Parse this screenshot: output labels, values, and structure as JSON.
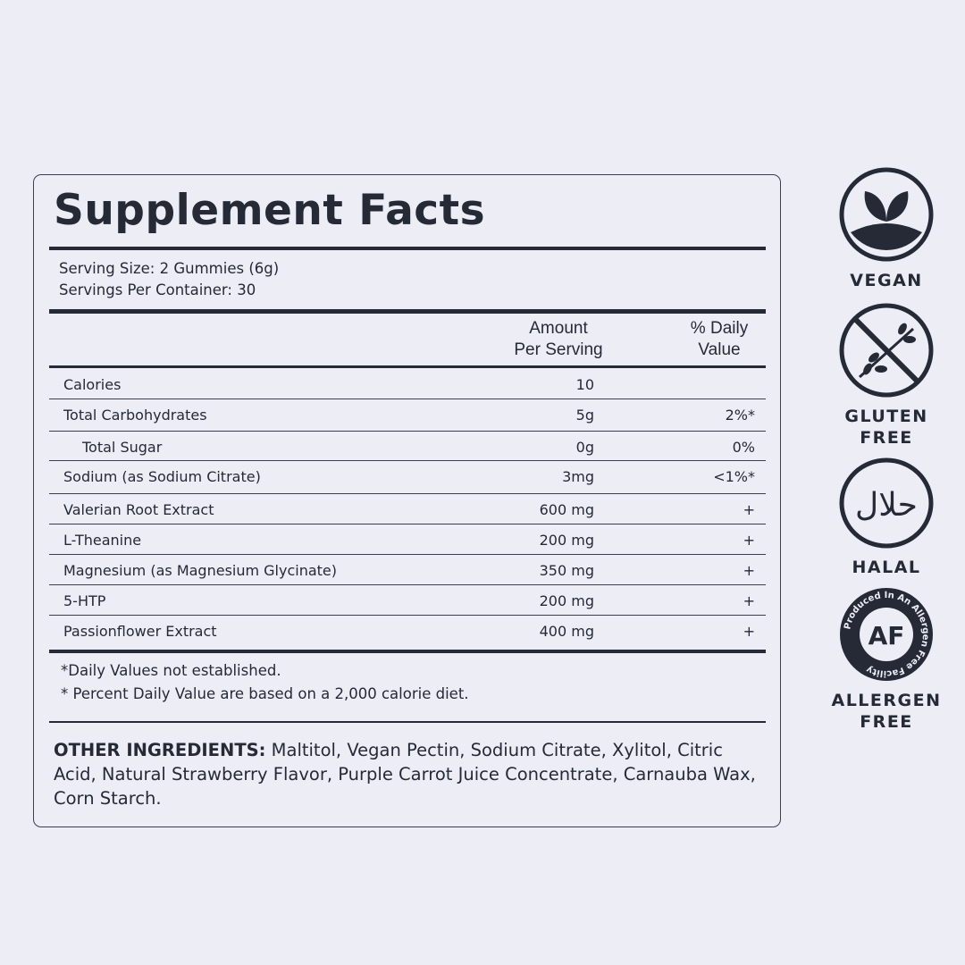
{
  "panel": {
    "title": "Supplement Facts",
    "serving_size": "Serving Size: 2 Gummies (6g)",
    "servings_per_container": "Servings Per Container: 30",
    "header": {
      "amount_line1": "Amount",
      "amount_line2": "Per Serving",
      "dv_line1": "% Daily",
      "dv_line2": "Value"
    },
    "rows": [
      {
        "name": "Calories",
        "amount": "10",
        "dv": ""
      },
      {
        "name": "Total Carbohydrates",
        "amount": "5g",
        "dv": "2%*"
      },
      {
        "name": "Total Sugar",
        "amount": "0g",
        "dv": "0%",
        "indent": true
      },
      {
        "name": "Sodium (as Sodium Citrate)",
        "amount": "3mg",
        "dv": "<1%*"
      },
      {
        "name": "Valerian Root Extract",
        "amount": "600 mg",
        "dv": "+"
      },
      {
        "name": "L-Theanine",
        "amount": "200 mg",
        "dv": "+"
      },
      {
        "name": "Magnesium (as Magnesium Glycinate)",
        "amount": "350 mg",
        "dv": "+"
      },
      {
        "name": "5-HTP",
        "amount": "200 mg",
        "dv": "+"
      },
      {
        "name": "Passionflower Extract",
        "amount": "400 mg",
        "dv": "+"
      }
    ],
    "footnotes": [
      "*Daily Values not established.",
      "* Percent Daily Value are based on a 2,000 calorie diet."
    ],
    "other_ingredients_label": "OTHER INGREDIENTS:",
    "other_ingredients": " Maltitol, Vegan Pectin, Sodium Citrate, Xylitol, Citric Acid, Natural Strawberry Flavor, Purple Carrot Juice Concentrate, Carnauba Wax, Corn Starch."
  },
  "badges": [
    {
      "icon": "vegan-leaf-icon",
      "label": "VEGAN"
    },
    {
      "icon": "gluten-free-icon",
      "label": "GLUTEN FREE"
    },
    {
      "icon": "halal-icon",
      "label": "HALAL",
      "logo_text": "حلال"
    },
    {
      "icon": "allergen-free-icon",
      "label": "ALLERGEN FREE",
      "logo_text": "AF",
      "ring_text": "Produced In An Allergen Free Facility"
    }
  ],
  "colors": {
    "background": "#ecedf5",
    "ink": "#252a36"
  }
}
